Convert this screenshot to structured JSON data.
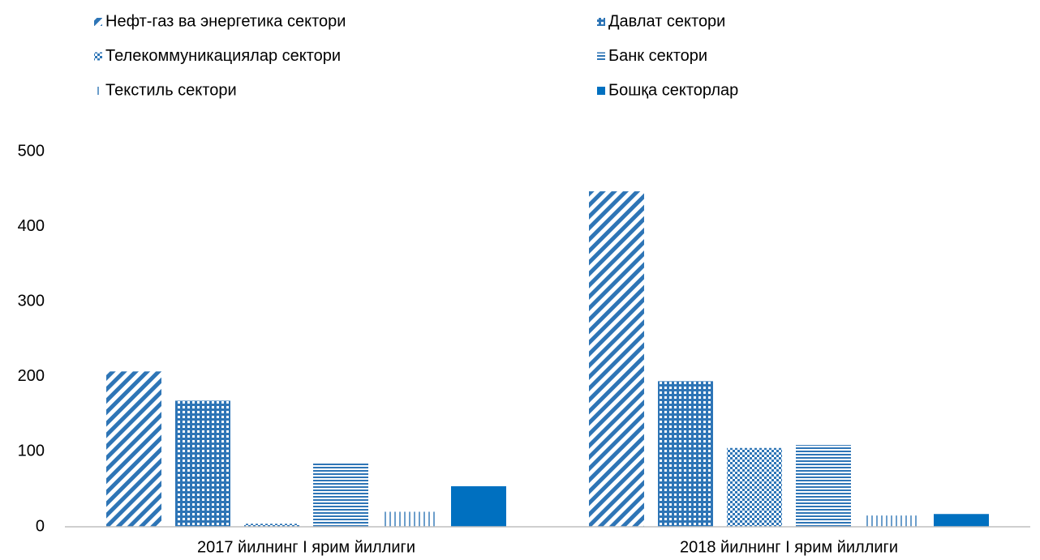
{
  "chart_data": {
    "type": "bar",
    "categories": [
      "2017 йилнинг I ярим йиллиги",
      "2018 йилнинг I ярим йиллиги"
    ],
    "series": [
      {
        "name": "Нефт-газ ва энергетика сектори",
        "color": "#2e75b6",
        "pattern": "diagonal",
        "values": [
          207,
          447
        ]
      },
      {
        "name": "Давлат сектори",
        "color": "#2e75b6",
        "pattern": "weave",
        "values": [
          168,
          194
        ]
      },
      {
        "name": "Телекоммуникациялар сектори",
        "color": "#2e75b6",
        "pattern": "checker",
        "values": [
          4,
          105
        ]
      },
      {
        "name": "Банк сектори",
        "color": "#2e75b6",
        "pattern": "horizontal",
        "values": [
          85,
          109
        ]
      },
      {
        "name": "Текстиль сектори",
        "color": "#2e75b6",
        "pattern": "vertical",
        "values": [
          20,
          15
        ]
      },
      {
        "name": "Бошқа секторлар",
        "color": "#0070c0",
        "pattern": "solid",
        "values": [
          54,
          17
        ]
      }
    ],
    "ylim": [
      0,
      500
    ],
    "yticks": [
      0,
      100,
      200,
      300,
      400,
      500
    ],
    "grid": false
  }
}
